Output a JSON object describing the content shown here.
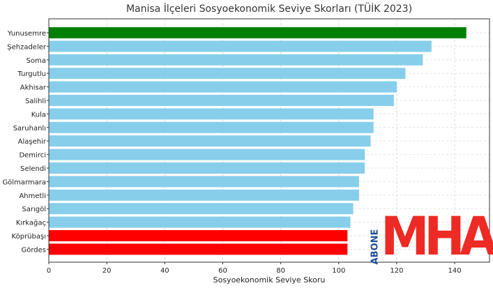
{
  "chart_data": {
    "type": "bar",
    "orientation": "horizontal",
    "title": "Manisa İlçeleri Sosyoekonomik Seviye Skorları (TÜİK 2023)",
    "xlabel": "Sosyoekonomik Seviye Skoru",
    "ylabel": "",
    "xlim": [
      0,
      152
    ],
    "xticks": [
      0,
      20,
      40,
      60,
      80,
      100,
      120,
      140
    ],
    "grid": true,
    "categories": [
      "Yunusemre",
      "Şehzadeler",
      "Soma",
      "Turgutlu",
      "Akhisar",
      "Salihli",
      "Kula",
      "Saruhanlı",
      "Alaşehir",
      "Demirci",
      "Selendi",
      "Gölmarmara",
      "Ahmetli",
      "Sarıgöl",
      "Kırkağaç",
      "Köprübaşı",
      "Gördes"
    ],
    "values": [
      144,
      132,
      129,
      123,
      120,
      119,
      112,
      112,
      111,
      109,
      109,
      107,
      107,
      105,
      104,
      103,
      103
    ],
    "bar_colors": [
      "#008000",
      "#87ceeb",
      "#87ceeb",
      "#87ceeb",
      "#87ceeb",
      "#87ceeb",
      "#87ceeb",
      "#87ceeb",
      "#87ceeb",
      "#87ceeb",
      "#87ceeb",
      "#87ceeb",
      "#87ceeb",
      "#87ceeb",
      "#87ceeb",
      "#ff0000",
      "#ff0000"
    ]
  },
  "logo": {
    "side_text": "ABONE",
    "main_text": "MHA"
  }
}
